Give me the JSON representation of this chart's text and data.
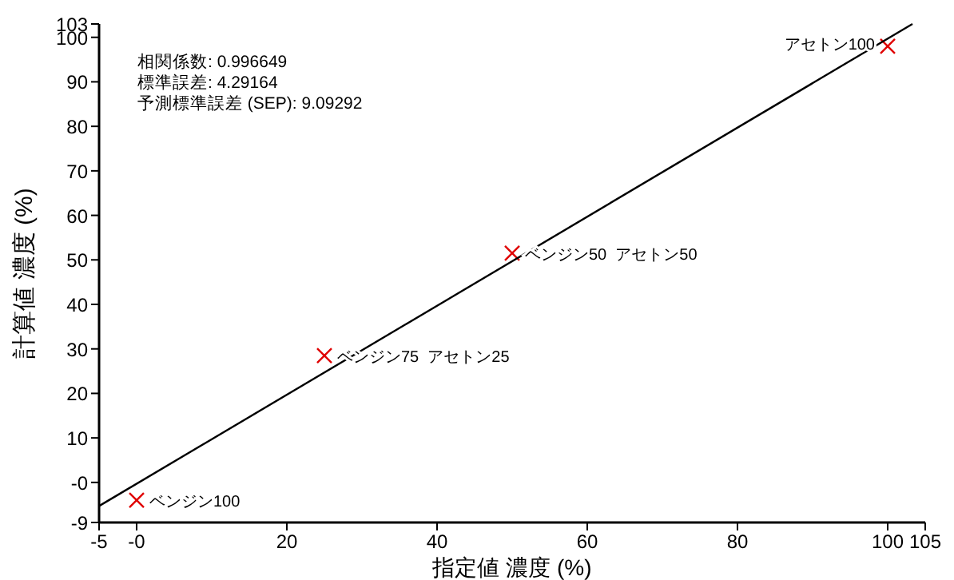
{
  "chart_data": {
    "type": "scatter",
    "xlabel": "指定値 濃度 (%)",
    "ylabel": "計算値 濃度 (%)",
    "xlim": [
      -5,
      105
    ],
    "ylim": [
      -9,
      103
    ],
    "xticks": [
      -5,
      {
        "value": 0,
        "label": "-0"
      },
      20,
      40,
      60,
      80,
      100,
      105
    ],
    "yticks": [
      -9,
      {
        "value": 0,
        "label": "-0"
      },
      10,
      20,
      30,
      40,
      50,
      60,
      70,
      80,
      90,
      100,
      103
    ],
    "grid": false,
    "series": [
      {
        "marker": "cross",
        "color": "#e00000",
        "x": [
          0,
          25,
          50,
          100
        ],
        "values": [
          -4,
          28.5,
          51.5,
          98
        ]
      },
      {
        "type": "line",
        "color": "#000000",
        "x": [
          -5,
          103.3
        ],
        "values": [
          -5.3,
          103
        ]
      }
    ],
    "annotations": [
      "相関係数: 0.996649",
      "標準誤差: 4.29164",
      "予測標準誤差 (SEP): 9.09292",
      {
        "text": "ベンジン100",
        "x": 0,
        "y": -4
      },
      {
        "text": "ベンジン75  アセトン25",
        "x": 25,
        "y": 28.5
      },
      {
        "text": "ベンジン50  アセトン50",
        "x": 50,
        "y": 51.5
      },
      {
        "text": "アセトン100",
        "x": 100,
        "y": 98
      }
    ]
  }
}
